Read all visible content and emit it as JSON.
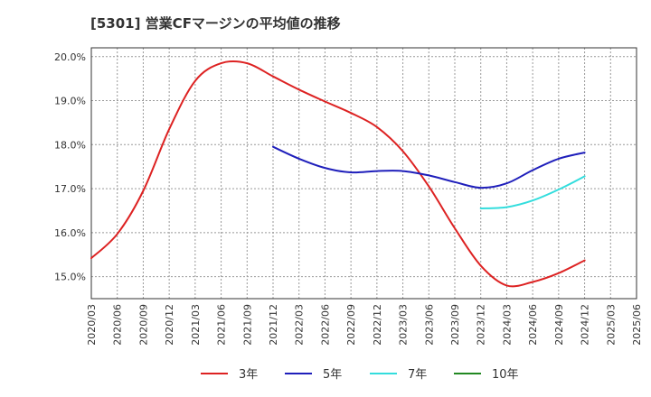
{
  "chart_data": {
    "type": "line",
    "title": "[5301]  営業CFマージンの平均値の推移",
    "xlabel": "",
    "ylabel": "",
    "categories": [
      "2020/03",
      "2020/06",
      "2020/09",
      "2020/12",
      "2021/03",
      "2021/06",
      "2021/09",
      "2021/12",
      "2022/03",
      "2022/06",
      "2022/09",
      "2022/12",
      "2023/03",
      "2023/06",
      "2023/09",
      "2023/12",
      "2024/03",
      "2024/06",
      "2024/09",
      "2024/12",
      "2025/03",
      "2025/06"
    ],
    "y_ticks": [
      "20.0%",
      "19.0%",
      "18.0%",
      "17.0%",
      "16.0%",
      "15.0%"
    ],
    "ylim": [
      14.5,
      20.2
    ],
    "grid": true,
    "legend_position": "bottom",
    "series": [
      {
        "name": "3年",
        "color": "#dd2222",
        "values": [
          15.42,
          15.97,
          16.95,
          18.35,
          19.45,
          19.85,
          19.85,
          19.55,
          19.25,
          18.98,
          18.72,
          18.4,
          17.85,
          17.05,
          16.1,
          15.25,
          14.8,
          14.88,
          15.08,
          15.37,
          null,
          null
        ]
      },
      {
        "name": "5年",
        "color": "#1f1fbb",
        "values": [
          null,
          null,
          null,
          null,
          null,
          null,
          null,
          17.95,
          17.68,
          17.47,
          17.37,
          17.4,
          17.4,
          17.3,
          17.15,
          17.02,
          17.12,
          17.42,
          17.68,
          17.82,
          null,
          null
        ]
      },
      {
        "name": "7年",
        "color": "#33dddd",
        "values": [
          null,
          null,
          null,
          null,
          null,
          null,
          null,
          null,
          null,
          null,
          null,
          null,
          null,
          null,
          null,
          16.55,
          16.58,
          16.73,
          16.98,
          17.28,
          null,
          null
        ]
      },
      {
        "name": "10年",
        "color": "#228822",
        "values": [
          null,
          null,
          null,
          null,
          null,
          null,
          null,
          null,
          null,
          null,
          null,
          null,
          null,
          null,
          null,
          null,
          null,
          null,
          null,
          null,
          null,
          null
        ]
      }
    ]
  }
}
